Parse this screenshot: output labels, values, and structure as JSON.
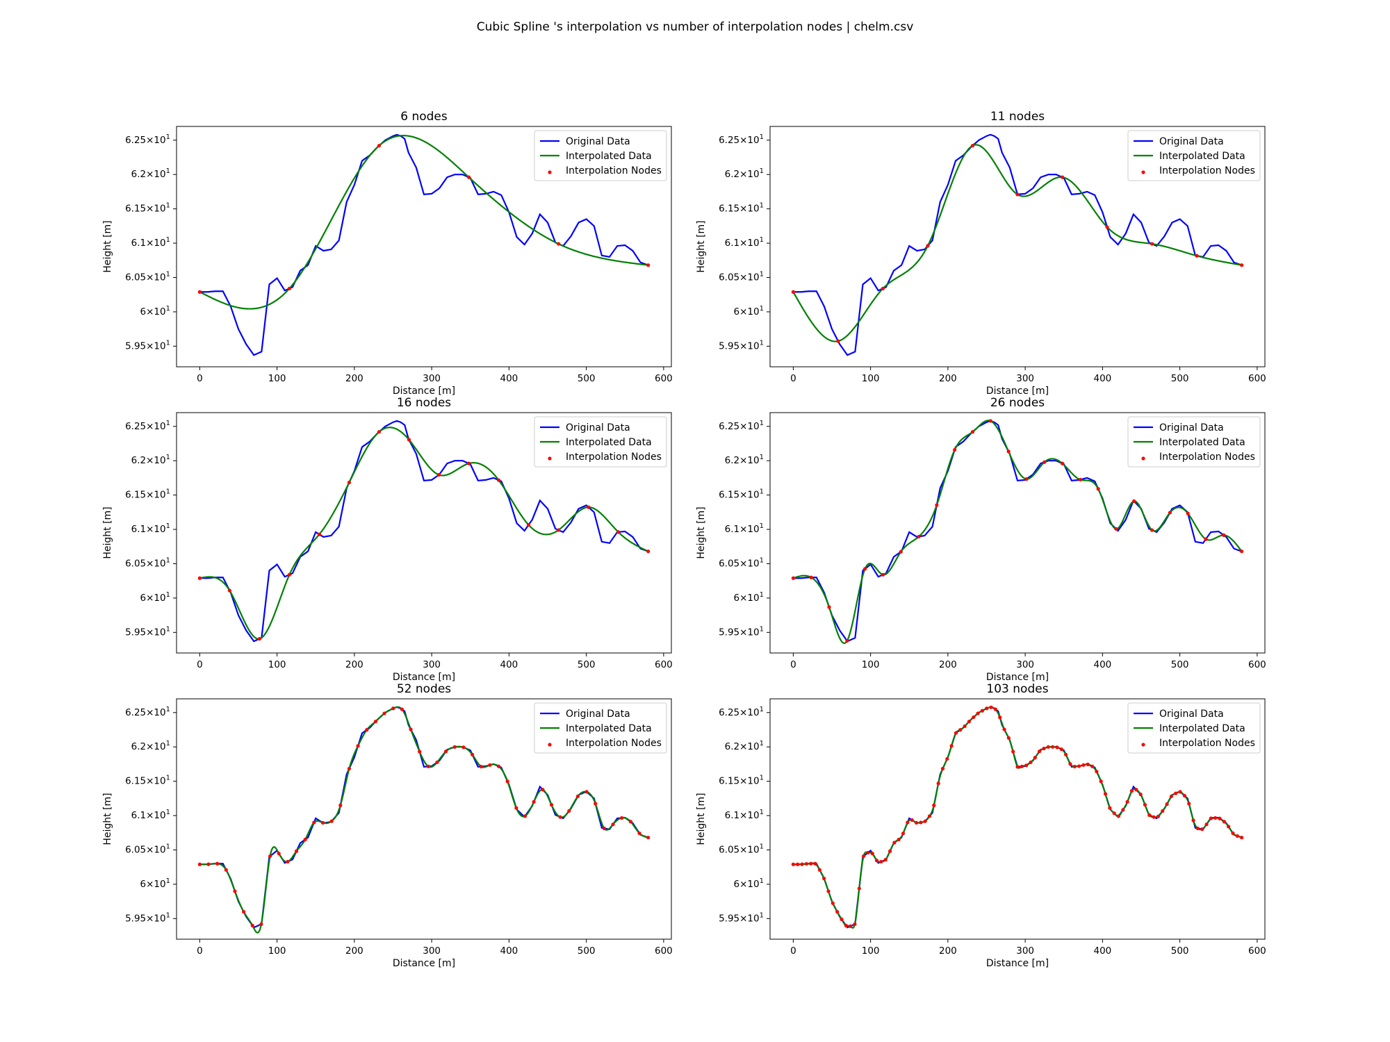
{
  "figure": {
    "title": "Cubic Spline 's interpolation vs number of interpolation nodes | chelm.csv"
  },
  "colors": {
    "original": "#0000ff",
    "interpolated": "#008000",
    "nodes": "#ff0000"
  },
  "chart_data": [
    {
      "type": "line",
      "title": "6 nodes",
      "xlabel": "Distance [m]",
      "ylabel": "Height [m]",
      "xlim": [
        -30,
        610
      ],
      "ylim": [
        59.2,
        62.7
      ],
      "legend": "top-right",
      "legend_entries": [
        "Original Data",
        "Interpolated Data",
        "Interpolation Nodes"
      ],
      "node_count": 6,
      "x_ticks": [
        0,
        100,
        200,
        300,
        400,
        500,
        600
      ],
      "y_ticks": [
        {
          "v": 59.5,
          "m": "5.95"
        },
        {
          "v": 60,
          "m": "6"
        },
        {
          "v": 60.5,
          "m": "6.05"
        },
        {
          "v": 61,
          "m": "6.1"
        },
        {
          "v": 61.5,
          "m": "6.15"
        },
        {
          "v": 62,
          "m": "6.2"
        },
        {
          "v": 62.5,
          "m": "6.25"
        }
      ]
    },
    {
      "type": "line",
      "title": "11 nodes",
      "xlabel": "Distance [m]",
      "ylabel": "Height [m]",
      "xlim": [
        -30,
        610
      ],
      "ylim": [
        59.2,
        62.7
      ],
      "legend": "top-right",
      "legend_entries": [
        "Original Data",
        "Interpolated Data",
        "Interpolation Nodes"
      ],
      "node_count": 11,
      "x_ticks": [
        0,
        100,
        200,
        300,
        400,
        500,
        600
      ],
      "y_ticks": [
        {
          "v": 59.5,
          "m": "5.95"
        },
        {
          "v": 60,
          "m": "6"
        },
        {
          "v": 60.5,
          "m": "6.05"
        },
        {
          "v": 61,
          "m": "6.1"
        },
        {
          "v": 61.5,
          "m": "6.15"
        },
        {
          "v": 62,
          "m": "6.2"
        },
        {
          "v": 62.5,
          "m": "6.25"
        }
      ]
    },
    {
      "type": "line",
      "title": "16 nodes",
      "xlabel": "Distance [m]",
      "ylabel": "Height [m]",
      "xlim": [
        -30,
        610
      ],
      "ylim": [
        59.2,
        62.7
      ],
      "legend": "top-right",
      "legend_entries": [
        "Original Data",
        "Interpolated Data",
        "Interpolation Nodes"
      ],
      "node_count": 16,
      "x_ticks": [
        0,
        100,
        200,
        300,
        400,
        500,
        600
      ],
      "y_ticks": [
        {
          "v": 59.5,
          "m": "5.95"
        },
        {
          "v": 60,
          "m": "6"
        },
        {
          "v": 60.5,
          "m": "6.05"
        },
        {
          "v": 61,
          "m": "6.1"
        },
        {
          "v": 61.5,
          "m": "6.15"
        },
        {
          "v": 62,
          "m": "6.2"
        },
        {
          "v": 62.5,
          "m": "6.25"
        }
      ]
    },
    {
      "type": "line",
      "title": "26 nodes",
      "xlabel": "Distance [m]",
      "ylabel": "Height [m]",
      "xlim": [
        -30,
        610
      ],
      "ylim": [
        59.2,
        62.7
      ],
      "legend": "top-right",
      "legend_entries": [
        "Original Data",
        "Interpolated Data",
        "Interpolation Nodes"
      ],
      "node_count": 26,
      "x_ticks": [
        0,
        100,
        200,
        300,
        400,
        500,
        600
      ],
      "y_ticks": [
        {
          "v": 59.5,
          "m": "5.95"
        },
        {
          "v": 60,
          "m": "6"
        },
        {
          "v": 60.5,
          "m": "6.05"
        },
        {
          "v": 61,
          "m": "6.1"
        },
        {
          "v": 61.5,
          "m": "6.15"
        },
        {
          "v": 62,
          "m": "6.2"
        },
        {
          "v": 62.5,
          "m": "6.25"
        }
      ]
    },
    {
      "type": "line",
      "title": "52 nodes",
      "xlabel": "Distance [m]",
      "ylabel": "Height [m]",
      "xlim": [
        -30,
        610
      ],
      "ylim": [
        59.2,
        62.7
      ],
      "legend": "top-right",
      "legend_entries": [
        "Original Data",
        "Interpolated Data",
        "Interpolation Nodes"
      ],
      "node_count": 52,
      "x_ticks": [
        0,
        100,
        200,
        300,
        400,
        500,
        600
      ],
      "y_ticks": [
        {
          "v": 59.5,
          "m": "5.95"
        },
        {
          "v": 60,
          "m": "6"
        },
        {
          "v": 60.5,
          "m": "6.05"
        },
        {
          "v": 61,
          "m": "6.1"
        },
        {
          "v": 61.5,
          "m": "6.15"
        },
        {
          "v": 62,
          "m": "6.2"
        },
        {
          "v": 62.5,
          "m": "6.25"
        }
      ]
    },
    {
      "type": "line",
      "title": "103 nodes",
      "xlabel": "Distance [m]",
      "ylabel": "Height [m]",
      "xlim": [
        -30,
        610
      ],
      "ylim": [
        59.2,
        62.7
      ],
      "legend": "top-right",
      "legend_entries": [
        "Original Data",
        "Interpolated Data",
        "Interpolation Nodes"
      ],
      "node_count": 103,
      "x_ticks": [
        0,
        100,
        200,
        300,
        400,
        500,
        600
      ],
      "y_ticks": [
        {
          "v": 59.5,
          "m": "5.95"
        },
        {
          "v": 60,
          "m": "6"
        },
        {
          "v": 60.5,
          "m": "6.05"
        },
        {
          "v": 61,
          "m": "6.1"
        },
        {
          "v": 61.5,
          "m": "6.15"
        },
        {
          "v": 62,
          "m": "6.2"
        },
        {
          "v": 62.5,
          "m": "6.25"
        }
      ]
    }
  ],
  "profile": {
    "x": [
      0,
      10,
      20,
      30,
      40,
      50,
      60,
      70,
      80,
      90,
      100,
      110,
      120,
      130,
      140,
      150,
      160,
      170,
      180,
      190,
      200,
      210,
      220,
      230,
      240,
      250,
      255,
      260,
      265,
      270,
      280,
      290,
      300,
      310,
      320,
      330,
      340,
      350,
      360,
      370,
      380,
      390,
      400,
      410,
      420,
      430,
      440,
      450,
      460,
      470,
      480,
      490,
      500,
      510,
      520,
      530,
      540,
      550,
      560,
      570,
      580
    ],
    "y": [
      60.29,
      60.29,
      60.3,
      60.3,
      60.08,
      59.75,
      59.53,
      59.37,
      59.42,
      60.4,
      60.49,
      60.31,
      60.36,
      60.6,
      60.68,
      60.96,
      60.89,
      60.91,
      61.04,
      61.6,
      61.85,
      62.2,
      62.28,
      62.4,
      62.5,
      62.56,
      62.58,
      62.56,
      62.52,
      62.32,
      62.1,
      61.71,
      61.72,
      61.8,
      61.96,
      62.0,
      62.0,
      61.95,
      61.71,
      61.72,
      61.75,
      61.7,
      61.45,
      61.09,
      60.98,
      61.14,
      61.42,
      61.3,
      61.01,
      60.96,
      61.1,
      61.3,
      61.35,
      61.25,
      60.82,
      60.8,
      60.96,
      60.97,
      60.89,
      60.72,
      60.68
    ]
  }
}
